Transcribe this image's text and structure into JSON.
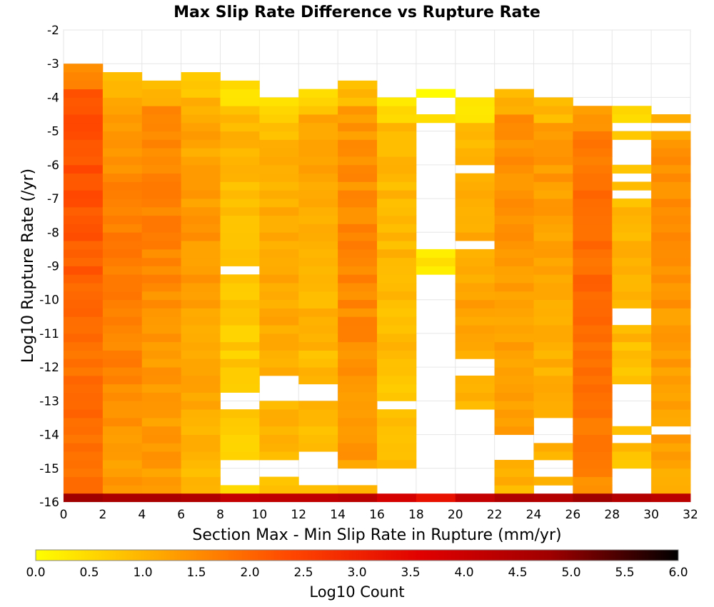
{
  "chart_data": {
    "type": "heatmap",
    "title": "Max Slip Rate Difference vs Rupture Rate",
    "xlabel": "Section Max - Min Slip Rate in Rupture (mm/yr)",
    "ylabel": "Log10 Rupture Rate (/yr)",
    "xlim": [
      0,
      32
    ],
    "ylim": [
      -16,
      -2
    ],
    "x_ticks": [
      "0",
      "2",
      "4",
      "6",
      "8",
      "10",
      "12",
      "14",
      "16",
      "18",
      "20",
      "22",
      "24",
      "26",
      "28",
      "30",
      "32"
    ],
    "y_ticks": [
      "-2",
      "-3",
      "-4",
      "-5",
      "-6",
      "-7",
      "-8",
      "-9",
      "-10",
      "-11",
      "-12",
      "-13",
      "-14",
      "-15",
      "-16"
    ],
    "bin_width_x": 2,
    "bin_height_y": 0.25,
    "grid": true,
    "colorbar": {
      "label": "Log10 Count",
      "range": [
        0.0,
        6.0
      ],
      "ticks": [
        "0.0",
        "0.5",
        "1.0",
        "1.5",
        "2.0",
        "2.5",
        "3.0",
        "3.5",
        "4.0",
        "4.5",
        "5.0",
        "5.5",
        "6.0"
      ],
      "colors": [
        "#ffff00",
        "#ffa500",
        "#ff4500",
        "#e00000",
        "#a00000",
        "#000000"
      ]
    },
    "columns": [
      {
        "x0": 0,
        "ymin": -16,
        "ymax": -3.0,
        "vbase": 1.9,
        "vpeak": 2.3,
        "peak_at": -6.0
      },
      {
        "x0": 2,
        "ymin": -16,
        "ymax": -3.25,
        "vbase": 1.3,
        "vpeak": 1.8,
        "peak_at": -9.5
      },
      {
        "x0": 4,
        "ymin": -16,
        "ymax": -3.5,
        "vbase": 1.3,
        "vpeak": 1.7,
        "peak_at": -7.0
      },
      {
        "x0": 6,
        "ymin": -16,
        "ymax": -3.25,
        "vbase": 1.0,
        "vpeak": 1.4,
        "peak_at": -8.5
      },
      {
        "x0": 8,
        "ymin": -16,
        "ymax": -3.5,
        "vbase": 0.7,
        "vpeak": 1.0,
        "peak_at": -5.0
      },
      {
        "x0": 10,
        "ymin": -16,
        "ymax": -4.0,
        "vbase": 0.9,
        "vpeak": 1.2,
        "peak_at": -10.0
      },
      {
        "x0": 12,
        "ymin": -16,
        "ymax": -3.75,
        "vbase": 0.9,
        "vpeak": 1.2,
        "peak_at": -6.5
      },
      {
        "x0": 14,
        "ymin": -16,
        "ymax": -3.5,
        "vbase": 1.3,
        "vpeak": 1.6,
        "peak_at": -9.0
      },
      {
        "x0": 16,
        "ymin": -16,
        "ymax": -4.0,
        "vbase": 0.8,
        "vpeak": 1.0,
        "peak_at": -8.0
      },
      {
        "x0": 18,
        "ymin": -16,
        "ymax": -3.75,
        "vbase": 0.3,
        "vpeak": 0.4,
        "peak_at": -4.0
      },
      {
        "x0": 20,
        "ymin": -16,
        "ymax": -4.0,
        "vbase": 0.9,
        "vpeak": 1.2,
        "peak_at": -10.0
      },
      {
        "x0": 22,
        "ymin": -16,
        "ymax": -3.75,
        "vbase": 1.2,
        "vpeak": 1.5,
        "peak_at": -6.0
      },
      {
        "x0": 24,
        "ymin": -16,
        "ymax": -4.0,
        "vbase": 1.1,
        "vpeak": 1.4,
        "peak_at": -5.0
      },
      {
        "x0": 26,
        "ymin": -16,
        "ymax": -4.25,
        "vbase": 1.7,
        "vpeak": 2.0,
        "peak_at": -10.0
      },
      {
        "x0": 28,
        "ymin": -16,
        "ymax": -4.0,
        "vbase": 0.8,
        "vpeak": 1.0,
        "peak_at": -9.0
      },
      {
        "x0": 30,
        "ymin": -16,
        "ymax": -4.5,
        "vbase": 1.3,
        "vpeak": 1.5,
        "peak_at": -6.0
      }
    ],
    "empty_bins": [
      [
        8,
        -9.25
      ],
      [
        8,
        -13.0
      ],
      [
        8,
        -13.25
      ],
      [
        8,
        -15.0
      ],
      [
        8,
        -15.25
      ],
      [
        8,
        -15.5
      ],
      [
        10,
        -12.5
      ],
      [
        10,
        -12.75
      ],
      [
        10,
        -13.0
      ],
      [
        10,
        -15.0
      ],
      [
        10,
        -15.25
      ],
      [
        12,
        -12.75
      ],
      [
        12,
        -13.0
      ],
      [
        12,
        -14.75
      ],
      [
        12,
        -15.0
      ],
      [
        12,
        -15.25
      ],
      [
        12,
        -15.5
      ],
      [
        14,
        -15.25
      ],
      [
        14,
        -15.5
      ],
      [
        16,
        -13.25
      ],
      [
        16,
        -15.25
      ],
      [
        16,
        -15.5
      ],
      [
        16,
        -15.75
      ],
      [
        18,
        -4.25
      ],
      [
        18,
        -4.5
      ],
      [
        18,
        -5.0
      ],
      [
        18,
        -5.25
      ],
      [
        18,
        -5.5
      ],
      [
        18,
        -5.75
      ],
      [
        18,
        -6.0
      ],
      [
        18,
        -6.25
      ],
      [
        18,
        -6.5
      ],
      [
        18,
        -6.75
      ],
      [
        18,
        -7.0
      ],
      [
        18,
        -7.25
      ],
      [
        18,
        -7.5
      ],
      [
        18,
        -7.75
      ],
      [
        18,
        -8.0
      ],
      [
        18,
        -8.25
      ],
      [
        18,
        -8.5
      ],
      [
        18,
        -9.5
      ],
      [
        18,
        -9.75
      ],
      [
        18,
        -10.0
      ],
      [
        18,
        -10.25
      ],
      [
        18,
        -10.5
      ],
      [
        18,
        -10.75
      ],
      [
        18,
        -11.0
      ],
      [
        18,
        -11.25
      ],
      [
        18,
        -11.5
      ],
      [
        18,
        -11.75
      ],
      [
        18,
        -12.0
      ],
      [
        18,
        -12.25
      ],
      [
        18,
        -12.5
      ],
      [
        18,
        -12.75
      ],
      [
        18,
        -13.0
      ],
      [
        18,
        -13.25
      ],
      [
        18,
        -13.5
      ],
      [
        18,
        -13.75
      ],
      [
        18,
        -14.0
      ],
      [
        18,
        -14.25
      ],
      [
        18,
        -14.5
      ],
      [
        18,
        -14.75
      ],
      [
        18,
        -15.0
      ],
      [
        18,
        -15.25
      ],
      [
        18,
        -15.5
      ],
      [
        18,
        -15.75
      ],
      [
        20,
        -6.25
      ],
      [
        20,
        -8.5
      ],
      [
        20,
        -12.0
      ],
      [
        20,
        -12.25
      ],
      [
        20,
        -13.5
      ],
      [
        20,
        -13.75
      ],
      [
        20,
        -14.0
      ],
      [
        20,
        -14.25
      ],
      [
        20,
        -14.5
      ],
      [
        20,
        -14.75
      ],
      [
        20,
        -15.0
      ],
      [
        20,
        -15.25
      ],
      [
        20,
        -15.5
      ],
      [
        20,
        -15.75
      ],
      [
        22,
        -14.25
      ],
      [
        22,
        -14.5
      ],
      [
        22,
        -14.75
      ],
      [
        24,
        -13.75
      ],
      [
        24,
        -14.0
      ],
      [
        24,
        -14.25
      ],
      [
        24,
        -15.0
      ],
      [
        24,
        -15.25
      ],
      [
        24,
        -15.75
      ],
      [
        28,
        -4.25
      ],
      [
        28,
        -12.75
      ],
      [
        28,
        -15.25
      ],
      [
        28,
        -15.5
      ],
      [
        28,
        -15.75
      ],
      [
        30,
        -14.0
      ],
      [
        28,
        -5.0
      ],
      [
        28,
        -5.5
      ],
      [
        28,
        -5.75
      ],
      [
        28,
        -6.0
      ],
      [
        28,
        -6.5
      ],
      [
        28,
        -7.0
      ],
      [
        28,
        -10.5
      ],
      [
        28,
        -10.75
      ],
      [
        28,
        -13.0
      ],
      [
        28,
        -13.25
      ],
      [
        28,
        -13.5
      ],
      [
        28,
        -13.75
      ],
      [
        28,
        -14.25
      ],
      [
        30,
        -5.0
      ]
    ],
    "bottom_row": {
      "y": -16,
      "values": [
        4.8,
        4.6,
        4.6,
        4.5,
        4.1,
        4.2,
        4.2,
        4.3,
        3.8,
        3.3,
        4.1,
        4.5,
        4.4,
        4.8,
        4.4,
        4.3
      ]
    }
  }
}
